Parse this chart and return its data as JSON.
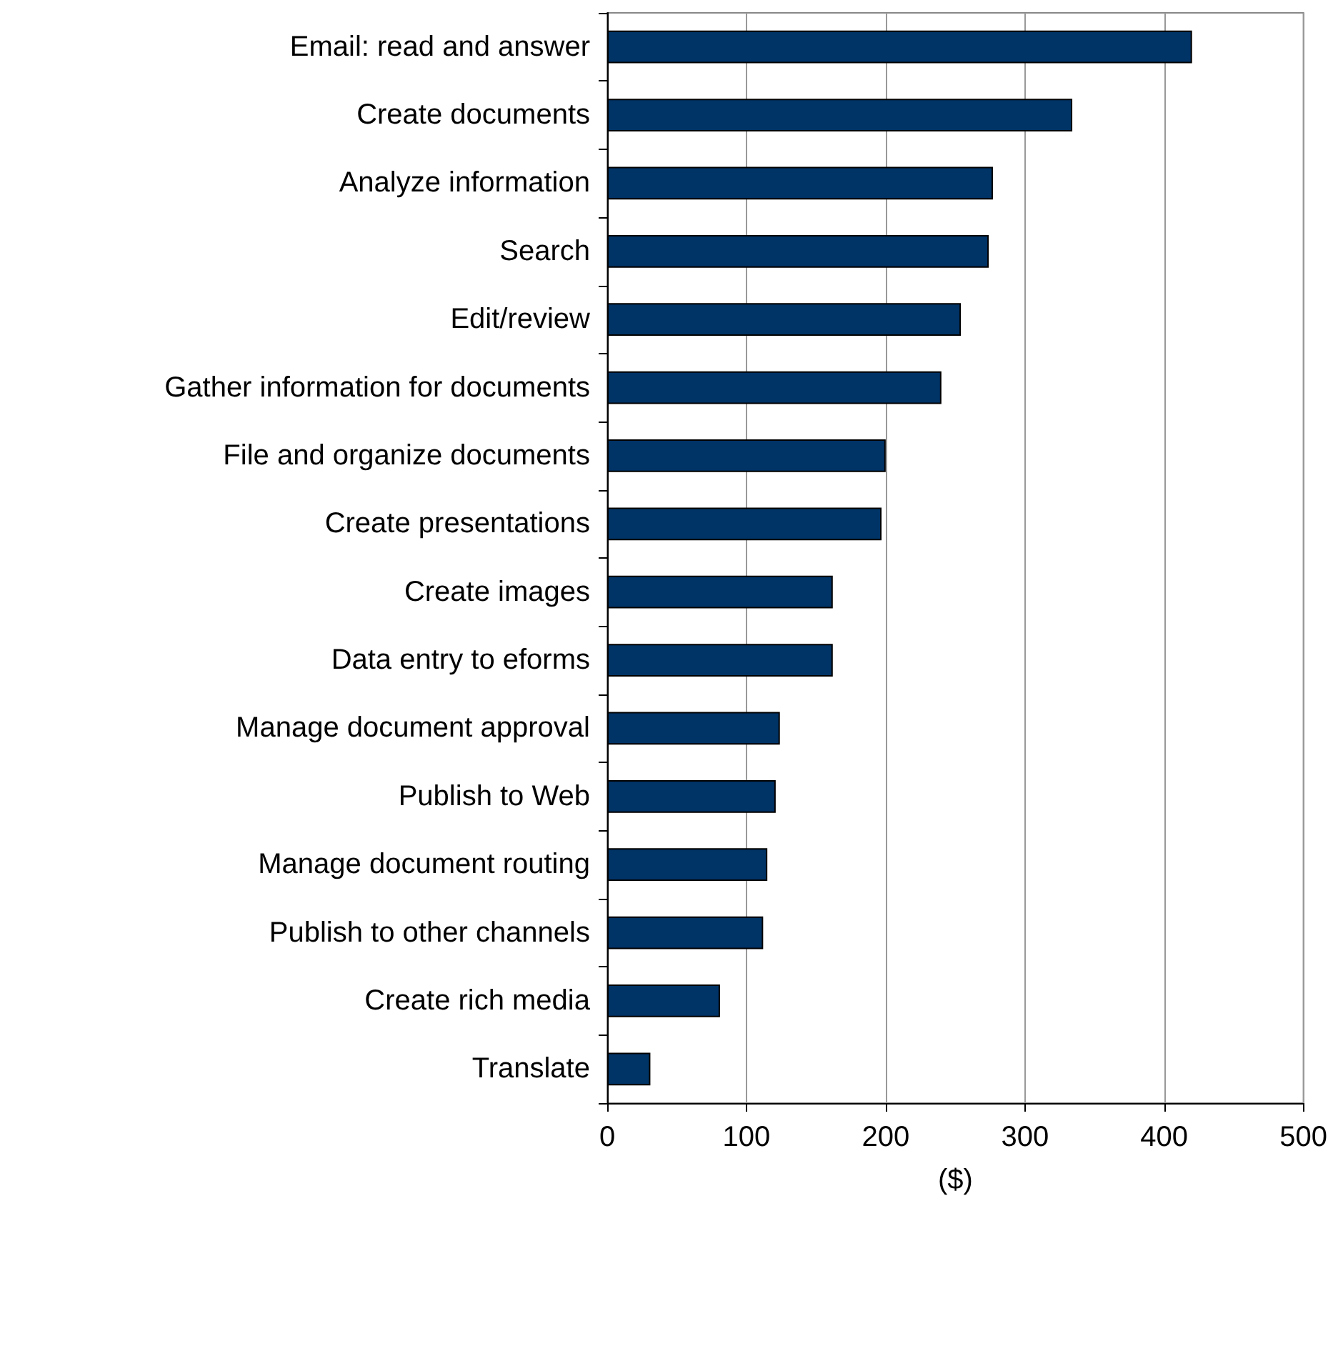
{
  "chart_data": {
    "type": "bar",
    "orientation": "horizontal",
    "xlabel": "($)",
    "categories": [
      "Email: read and answer",
      "Create documents",
      "Analyze information",
      "Search",
      "Edit/review",
      "Gather information for documents",
      "File and organize documents",
      "Create presentations",
      "Create images",
      "Data entry to eforms",
      "Manage document approval",
      "Publish to Web",
      "Manage document routing",
      "Publish to other channels",
      "Create rich media",
      "Translate"
    ],
    "values": [
      420,
      334,
      277,
      274,
      254,
      240,
      200,
      197,
      162,
      162,
      124,
      121,
      115,
      112,
      81,
      31
    ],
    "color": "#003366",
    "xlim": [
      0,
      500
    ],
    "xticks": [
      0,
      100,
      200,
      300,
      400,
      500
    ],
    "grid": "x"
  }
}
